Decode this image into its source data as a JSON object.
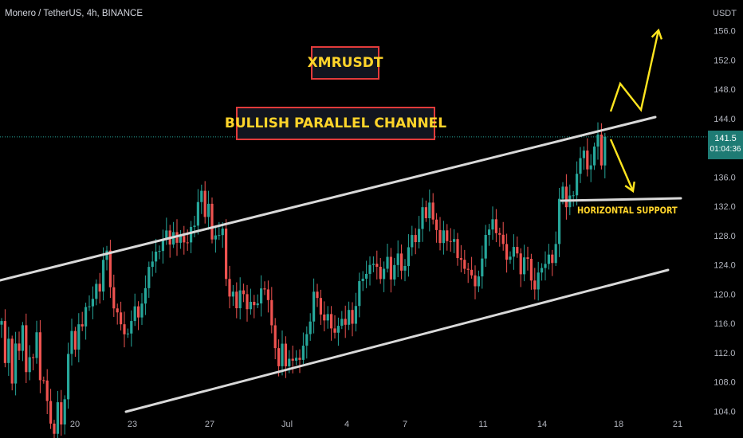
{
  "header": {
    "title": "Monero / TetherUS, 4h, BINANCE"
  },
  "annotations": {
    "symbol_label": "XMRUSDT",
    "pattern_label": "BULLISH PARALLEL CHANNEL",
    "support_label": "HORIZONTAL SUPPORT"
  },
  "price_tag": {
    "price": "141.5",
    "countdown": "01:04:36"
  },
  "colors": {
    "up": "#26a69a",
    "down": "#ef5350",
    "channel": "#d9d9d9",
    "arrow": "#ffe51f",
    "box_border": "#e23b3b",
    "current_price_line": "#26a69a"
  },
  "chart_data": {
    "type": "candlestick",
    "title": "Monero / TetherUS, 4h, BINANCE",
    "y_axis": {
      "unit": "USDT",
      "ticks": [
        "156.0",
        "152.0",
        "148.0",
        "144.0",
        "140.0",
        "136.0",
        "132.0",
        "128.0",
        "124.0",
        "120.0",
        "116.0",
        "112.0",
        "108.0",
        "104.0"
      ],
      "range": [
        101,
        159
      ]
    },
    "x_axis": {
      "ticks": [
        "20",
        "23",
        "27",
        "Jul",
        "4",
        "7",
        "11",
        "14",
        "18",
        "21"
      ]
    },
    "current_price": 141.5,
    "grid": false,
    "close_path": [
      [
        0,
        118
      ],
      [
        6,
        110
      ],
      [
        10,
        115
      ],
      [
        15,
        106
      ],
      [
        20,
        113
      ],
      [
        24,
        112
      ],
      [
        28,
        115
      ],
      [
        33,
        108
      ],
      [
        36,
        113
      ],
      [
        40,
        108
      ],
      [
        44,
        115
      ],
      [
        48,
        113
      ],
      [
        52,
        106
      ],
      [
        56,
        110
      ],
      [
        60,
        104
      ],
      [
        64,
        103
      ],
      [
        67,
        101.5
      ],
      [
        70,
        104
      ],
      [
        73,
        106
      ],
      [
        76,
        102
      ],
      [
        80,
        106
      ],
      [
        83,
        109
      ],
      [
        86,
        113
      ],
      [
        90,
        115
      ],
      [
        94,
        113
      ],
      [
        98,
        117
      ],
      [
        102,
        114
      ],
      [
        106,
        117
      ],
      [
        110,
        120
      ],
      [
        114,
        117
      ],
      [
        118,
        119
      ],
      [
        122,
        121
      ],
      [
        126,
        120
      ],
      [
        130,
        124
      ],
      [
        134,
        124.5
      ],
      [
        138,
        121
      ],
      [
        142,
        118
      ],
      [
        146,
        116
      ],
      [
        150,
        117
      ],
      [
        154,
        114
      ],
      [
        158,
        116
      ],
      [
        162,
        113
      ],
      [
        166,
        118
      ],
      [
        170,
        120
      ],
      [
        174,
        117
      ],
      [
        178,
        119
      ],
      [
        182,
        122
      ],
      [
        186,
        125
      ],
      [
        190,
        124
      ],
      [
        194,
        126
      ],
      [
        198,
        128
      ],
      [
        202,
        126
      ],
      [
        206,
        128
      ],
      [
        210,
        129
      ],
      [
        214,
        127
      ],
      [
        218,
        128
      ],
      [
        222,
        126
      ],
      [
        226,
        128
      ],
      [
        230,
        127
      ],
      [
        234,
        124
      ],
      [
        238,
        129
      ],
      [
        242,
        128
      ],
      [
        246,
        130
      ],
      [
        250,
        132
      ],
      [
        254,
        134
      ],
      [
        258,
        130
      ],
      [
        262,
        132
      ],
      [
        266,
        127
      ],
      [
        270,
        129
      ],
      [
        274,
        128
      ],
      [
        278,
        131
      ],
      [
        282,
        124
      ],
      [
        286,
        122
      ],
      [
        290,
        120
      ],
      [
        294,
        121
      ],
      [
        298,
        118
      ],
      [
        302,
        123
      ],
      [
        306,
        120
      ],
      [
        310,
        118
      ],
      [
        314,
        120
      ],
      [
        318,
        119
      ],
      [
        322,
        117
      ],
      [
        326,
        120
      ],
      [
        330,
        122
      ],
      [
        334,
        119
      ],
      [
        338,
        117
      ],
      [
        342,
        114
      ],
      [
        346,
        112
      ],
      [
        350,
        108.5
      ],
      [
        354,
        112
      ],
      [
        358,
        110
      ],
      [
        362,
        111
      ],
      [
        366,
        109
      ],
      [
        370,
        112
      ],
      [
        374,
        111
      ],
      [
        378,
        112
      ],
      [
        382,
        113
      ],
      [
        386,
        116
      ],
      [
        390,
        118
      ],
      [
        394,
        121
      ],
      [
        398,
        120
      ],
      [
        402,
        119
      ],
      [
        406,
        117
      ],
      [
        410,
        118
      ],
      [
        414,
        116
      ],
      [
        418,
        117
      ],
      [
        422,
        114
      ],
      [
        426,
        116
      ],
      [
        430,
        117
      ],
      [
        434,
        116
      ],
      [
        438,
        117
      ],
      [
        442,
        115
      ],
      [
        446,
        118
      ],
      [
        450,
        121
      ],
      [
        454,
        120
      ],
      [
        458,
        122
      ],
      [
        462,
        123
      ],
      [
        466,
        124
      ],
      [
        470,
        122
      ],
      [
        474,
        124
      ],
      [
        478,
        122
      ],
      [
        482,
        123
      ],
      [
        486,
        125
      ],
      [
        490,
        123
      ],
      [
        494,
        124
      ],
      [
        498,
        126
      ],
      [
        502,
        125
      ],
      [
        506,
        124
      ],
      [
        510,
        126
      ],
      [
        514,
        127
      ],
      [
        518,
        130
      ],
      [
        522,
        128
      ],
      [
        526,
        129
      ],
      [
        530,
        132
      ],
      [
        534,
        131
      ],
      [
        538,
        133
      ],
      [
        542,
        129
      ],
      [
        546,
        130
      ],
      [
        550,
        127
      ],
      [
        554,
        126
      ],
      [
        558,
        128
      ],
      [
        562,
        126
      ],
      [
        566,
        127
      ],
      [
        570,
        126
      ],
      [
        574,
        124
      ],
      [
        578,
        125
      ],
      [
        582,
        123
      ],
      [
        586,
        122
      ],
      [
        590,
        124
      ],
      [
        594,
        122
      ],
      [
        598,
        121
      ],
      [
        602,
        123
      ],
      [
        606,
        127
      ],
      [
        610,
        130
      ],
      [
        614,
        129
      ],
      [
        618,
        131
      ],
      [
        622,
        130
      ],
      [
        626,
        129
      ],
      [
        630,
        127
      ],
      [
        634,
        127
      ],
      [
        638,
        124
      ],
      [
        642,
        127
      ],
      [
        646,
        125
      ],
      [
        650,
        126
      ],
      [
        654,
        122
      ],
      [
        658,
        124
      ],
      [
        662,
        124
      ],
      [
        666,
        122
      ],
      [
        670,
        119
      ],
      [
        674,
        121
      ],
      [
        678,
        123
      ],
      [
        682,
        124
      ],
      [
        686,
        123
      ],
      [
        690,
        125
      ],
      [
        694,
        124
      ],
      [
        698,
        128
      ],
      [
        702,
        133
      ],
      [
        706,
        135
      ],
      [
        710,
        133
      ],
      [
        714,
        134
      ],
      [
        718,
        133
      ],
      [
        722,
        136
      ],
      [
        726,
        141
      ],
      [
        730,
        138
      ],
      [
        734,
        141
      ],
      [
        738,
        137
      ],
      [
        742,
        139
      ],
      [
        746,
        140
      ],
      [
        750,
        142
      ],
      [
        754,
        138
      ],
      [
        758,
        140
      ],
      [
        762,
        141.5
      ]
    ],
    "overlays": {
      "upper_channel_line": [
        [
          0,
          352
        ],
        [
          822,
          147
        ]
      ],
      "lower_channel_line": [
        [
          158,
          517
        ],
        [
          838,
          339
        ]
      ],
      "horizontal_support_line": [
        [
          704,
          252
        ],
        [
          854,
          249
        ]
      ],
      "bullish_arrow": [
        [
          766,
          140
        ],
        [
          778,
          105
        ],
        [
          804,
          138
        ],
        [
          826,
          38
        ]
      ],
      "bearish_arrow": [
        [
          766,
          175
        ],
        [
          794,
          240
        ]
      ]
    }
  }
}
